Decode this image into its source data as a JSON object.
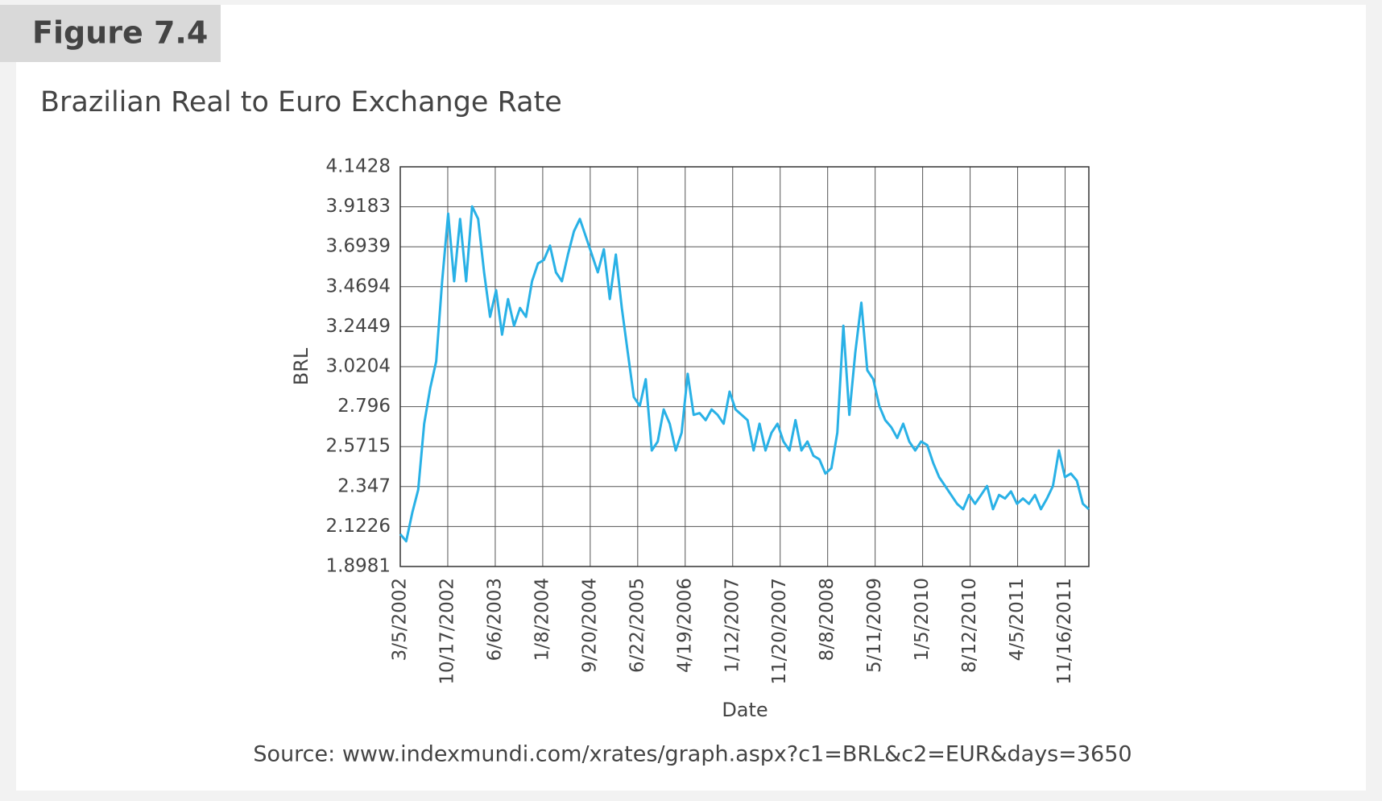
{
  "chart_data": {
    "type": "line",
    "figure_label": "Figure 7.4",
    "title": "Brazilian Real to Euro Exchange Rate",
    "x_label": "Date",
    "y_label": "BRL",
    "source": "Source: www.indexmundi.com/xrates/graph.aspx?c1=BRL&c2=EUR&days=3650",
    "color": "#29b1e6",
    "grid": true,
    "xticks": [
      "3/5/2002",
      "10/17/2002",
      "6/6/2003",
      "1/8/2004",
      "9/20/2004",
      "6/22/2005",
      "4/19/2006",
      "1/12/2007",
      "11/20/2007",
      "8/8/2008",
      "5/11/2009",
      "1/5/2010",
      "8/12/2010",
      "4/5/2011",
      "11/16/2011"
    ],
    "ylim": [
      1.8981,
      4.1428
    ],
    "yticks": [
      1.8981,
      2.1226,
      2.347,
      2.5715,
      2.796,
      3.0204,
      3.2449,
      3.4694,
      3.6939,
      3.9183,
      4.1428
    ],
    "values": [
      2.08,
      2.04,
      2.2,
      2.33,
      2.7,
      2.9,
      3.05,
      3.5,
      3.88,
      3.5,
      3.85,
      3.5,
      3.92,
      3.85,
      3.55,
      3.3,
      3.45,
      3.2,
      3.4,
      3.25,
      3.35,
      3.3,
      3.5,
      3.6,
      3.62,
      3.7,
      3.55,
      3.5,
      3.65,
      3.78,
      3.85,
      3.75,
      3.65,
      3.55,
      3.68,
      3.4,
      3.65,
      3.35,
      3.1,
      2.85,
      2.8,
      2.95,
      2.55,
      2.6,
      2.78,
      2.7,
      2.55,
      2.65,
      2.98,
      2.75,
      2.76,
      2.72,
      2.78,
      2.75,
      2.7,
      2.88,
      2.78,
      2.75,
      2.72,
      2.55,
      2.7,
      2.55,
      2.65,
      2.7,
      2.6,
      2.55,
      2.72,
      2.55,
      2.6,
      2.52,
      2.5,
      2.42,
      2.45,
      2.65,
      3.25,
      2.75,
      3.1,
      3.38,
      3.0,
      2.95,
      2.8,
      2.72,
      2.68,
      2.62,
      2.7,
      2.6,
      2.55,
      2.6,
      2.58,
      2.48,
      2.4,
      2.35,
      2.3,
      2.25,
      2.22,
      2.3,
      2.25,
      2.3,
      2.35,
      2.22,
      2.3,
      2.28,
      2.32,
      2.25,
      2.28,
      2.25,
      2.3,
      2.22,
      2.28,
      2.35,
      2.55,
      2.4,
      2.42,
      2.38,
      2.25,
      2.22
    ]
  }
}
